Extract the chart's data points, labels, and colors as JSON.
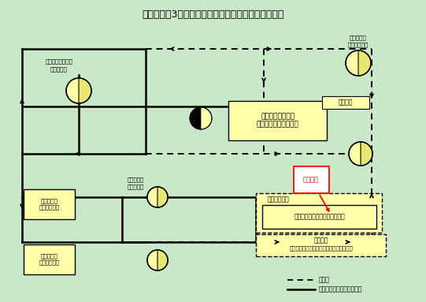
{
  "title": "伊方発電所3号機　中央制御室非常用循環系統概略図",
  "bg_color": "#c8e8c8",
  "yellow": "#ffffaa",
  "yellow_fan": "#e8e870",
  "legend_normal": "通常時",
  "legend_signal": "中央制御室隔離信号発信時",
  "fig_w": 5.41,
  "fig_h": 3.83,
  "dpi": 100
}
